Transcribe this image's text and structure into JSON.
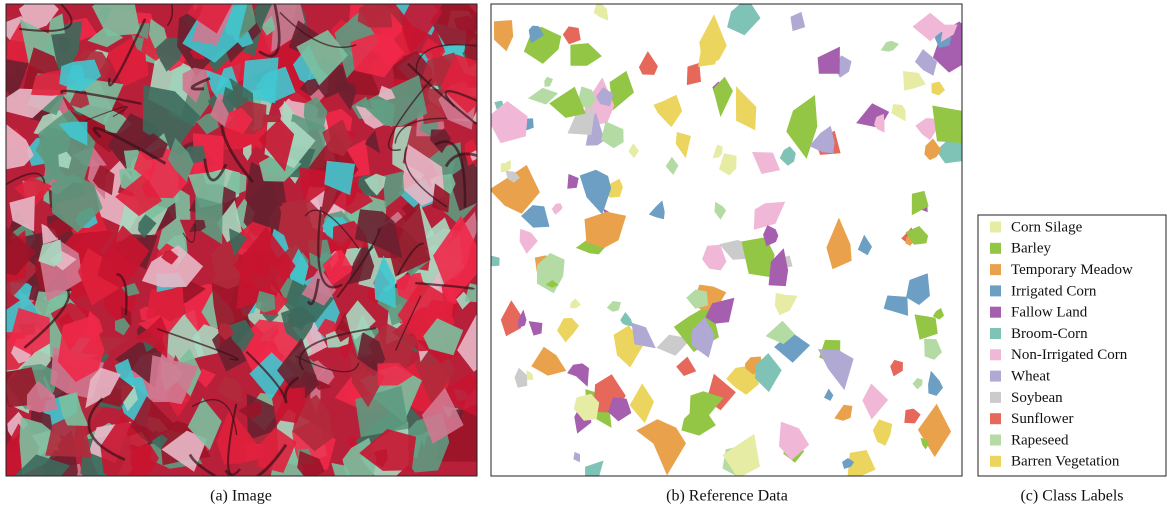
{
  "figure": {
    "captions": [
      "(a) Image",
      "(b) Reference Data",
      "(c) Class Labels"
    ],
    "classes": [
      {
        "label": "Corn Silage",
        "color": "#e6eca4"
      },
      {
        "label": "Barley",
        "color": "#93c644"
      },
      {
        "label": "Temporary Meadow",
        "color": "#e9a14c"
      },
      {
        "label": "Irrigated Corn",
        "color": "#6d9ec3"
      },
      {
        "label": "Fallow Land",
        "color": "#a65fae"
      },
      {
        "label": "Broom-Corn",
        "color": "#7fc3b6"
      },
      {
        "label": "Non-Irrigated Corn",
        "color": "#f0b7d6"
      },
      {
        "label": "Wheat",
        "color": "#afa9d3"
      },
      {
        "label": "Soybean",
        "color": "#cbcbcb"
      },
      {
        "label": "Sunflower",
        "color": "#e5685a"
      },
      {
        "label": "Rapeseed",
        "color": "#b3dba3"
      },
      {
        "label": "Barren Vegetation",
        "color": "#ecd55e"
      }
    ]
  }
}
